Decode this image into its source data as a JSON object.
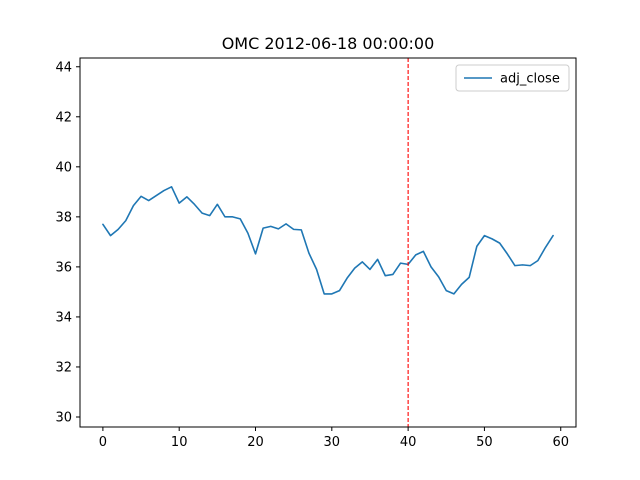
{
  "chart_data": {
    "type": "line",
    "title": "OMC 2012-06-18 00:00:00",
    "xlabel": "",
    "ylabel": "",
    "xlim": [
      -3,
      62
    ],
    "ylim": [
      29.6,
      44.35
    ],
    "xticks": [
      0,
      10,
      20,
      30,
      40,
      50,
      60
    ],
    "yticks": [
      30,
      32,
      34,
      36,
      38,
      40,
      42,
      44
    ],
    "grid": false,
    "legend_position": "top-right",
    "series": [
      {
        "name": "adj_close",
        "color": "#1f77b4",
        "x": [
          0,
          1,
          2,
          3,
          4,
          5,
          6,
          7,
          8,
          9,
          10,
          11,
          12,
          13,
          14,
          15,
          16,
          17,
          18,
          19,
          20,
          21,
          22,
          23,
          24,
          25,
          26,
          27,
          28,
          29,
          30,
          31,
          32,
          33,
          34,
          35,
          36,
          37,
          38,
          39,
          40,
          41,
          42,
          43,
          44,
          45,
          46,
          47,
          48,
          49,
          50,
          51,
          52,
          53,
          54,
          55,
          56,
          57,
          58,
          59
        ],
        "y": [
          37.7,
          37.25,
          37.5,
          37.85,
          38.45,
          38.82,
          38.65,
          38.85,
          39.05,
          39.2,
          38.55,
          38.8,
          38.5,
          38.15,
          38.05,
          38.5,
          38.0,
          38.0,
          37.92,
          37.35,
          36.52,
          37.55,
          37.62,
          37.52,
          37.72,
          37.5,
          37.48,
          36.55,
          35.9,
          34.92,
          34.92,
          35.05,
          35.55,
          35.95,
          36.2,
          35.9,
          36.3,
          35.65,
          35.7,
          36.15,
          36.1,
          36.48,
          36.62,
          36.0,
          35.6,
          35.05,
          34.92,
          35.3,
          35.58,
          36.82,
          37.25,
          37.12,
          36.95,
          36.52,
          36.05,
          36.08,
          36.05,
          36.25,
          36.78,
          37.25
        ]
      }
    ],
    "reference_lines": [
      {
        "axis": "x",
        "value": 40,
        "color": "#ff0000",
        "style": "dashed"
      }
    ]
  }
}
